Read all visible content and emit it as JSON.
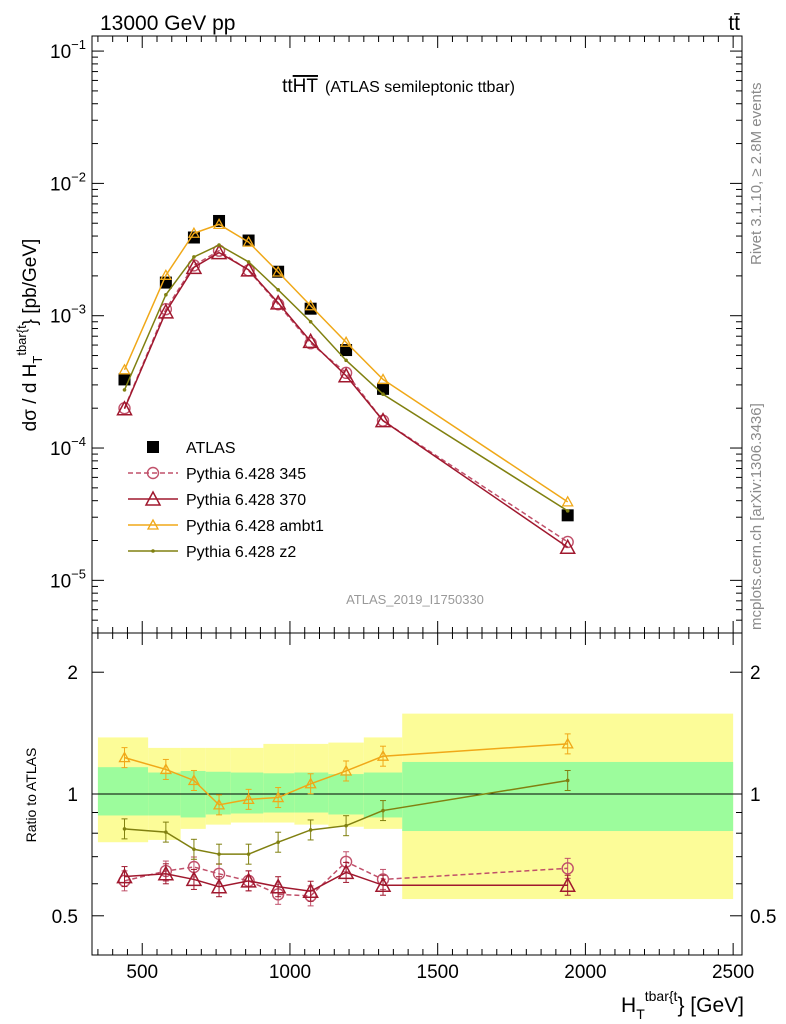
{
  "header": {
    "left": "13000 GeV pp",
    "right": "tt̄"
  },
  "annotation": {
    "process_main": "tt",
    "process_over": "HT",
    "process_suffix": "(ATLAS semileptonic ttbar)",
    "analysis_id": "ATLAS_2019_I1750330"
  },
  "side_labels": {
    "rivet": "Rivet 3.1.10, ≥ 2.8M events",
    "mcplots": "mcplots.cern.ch [arXiv:1306.3436]"
  },
  "colors": {
    "atlas": "#000000",
    "py345": "#c0506a",
    "py370": "#a0182e",
    "ambt1": "#f0a818",
    "z2": "#808010",
    "band_green": "#9cfc9c",
    "band_yellow": "#fcfc98"
  },
  "chart_data": [
    {
      "type": "line",
      "ylabel_parts": {
        "main": "dσ / d H",
        "sub": "T",
        "sup": "tbar{t",
        "tail": "} [pb/GeV]"
      },
      "yscale": "log",
      "ylim": [
        4e-06,
        0.13
      ],
      "xlim": [
        330,
        2530
      ],
      "y_ticks": [
        {
          "value": 0.1,
          "label": "10",
          "exp": "−1"
        },
        {
          "value": 0.01,
          "label": "10",
          "exp": "−2"
        },
        {
          "value": 0.001,
          "label": "10",
          "exp": "−3"
        },
        {
          "value": 0.0001,
          "label": "10",
          "exp": "−4"
        },
        {
          "value": 1e-05,
          "label": "10",
          "exp": "−5"
        }
      ],
      "legend_position": "middle-left",
      "x": [
        440,
        580,
        675,
        760,
        860,
        960,
        1070,
        1190,
        1315,
        1940
      ],
      "series": [
        {
          "name": "ATLAS",
          "marker": "square",
          "values": [
            0.00033,
            0.00178,
            0.0039,
            0.0052,
            0.0037,
            0.00215,
            0.00113,
            0.00055,
            0.00028,
            3.1e-05
          ]
        },
        {
          "name": "Pythia 6.428 345",
          "marker": "circle",
          "dashed": true,
          "values": [
            0.0002,
            0.00112,
            0.0024,
            0.0031,
            0.0022,
            0.00122,
            0.00062,
            0.00037,
            0.000161,
            1.95e-05
          ]
        },
        {
          "name": "Pythia 6.428 370",
          "marker": "triangle-large",
          "values": [
            0.000198,
            0.00107,
            0.00232,
            0.003,
            0.00222,
            0.00125,
            0.00064,
            0.000352,
            0.000161,
            1.78e-05
          ]
        },
        {
          "name": "Pythia 6.428 ambt1",
          "marker": "triangle-small",
          "values": [
            0.00039,
            0.00202,
            0.0042,
            0.0049,
            0.0036,
            0.00214,
            0.00119,
            0.00063,
            0.00033,
            3.92e-05
          ]
        },
        {
          "name": "Pythia 6.428 z2",
          "marker": "dot",
          "values": [
            0.000275,
            0.00144,
            0.00278,
            0.00342,
            0.00255,
            0.00157,
            0.0009,
            0.00046,
            0.000255,
            3.35e-05
          ]
        }
      ]
    },
    {
      "type": "line",
      "ylabel": "Ratio to ATLAS",
      "yscale": "log",
      "ylim": [
        0.4,
        2.5
      ],
      "xlim": [
        330,
        2530
      ],
      "xlabel_parts": {
        "main": "H",
        "sub": "T",
        "sup": "tbar{t",
        "tail": "} [GeV]"
      },
      "y_ticks": [
        {
          "value": 0.5,
          "label": "0.5"
        },
        {
          "value": 1,
          "label": "1"
        },
        {
          "value": 2,
          "label": "2"
        }
      ],
      "x_ticks": [
        {
          "value": 500,
          "label": "500"
        },
        {
          "value": 1000,
          "label": "1000"
        },
        {
          "value": 1500,
          "label": "1500"
        },
        {
          "value": 2000,
          "label": "2000"
        },
        {
          "value": 2500,
          "label": "2500"
        }
      ],
      "bins": [
        [
          350,
          520
        ],
        [
          520,
          630
        ],
        [
          630,
          715
        ],
        [
          715,
          800
        ],
        [
          800,
          910
        ],
        [
          910,
          1015
        ],
        [
          1015,
          1130
        ],
        [
          1130,
          1250
        ],
        [
          1250,
          1380
        ],
        [
          1380,
          2500
        ]
      ],
      "band_green": [
        [
          0.885,
          1.165
        ],
        [
          0.885,
          1.13
        ],
        [
          0.875,
          1.14
        ],
        [
          0.89,
          1.135
        ],
        [
          0.895,
          1.13
        ],
        [
          0.9,
          1.125
        ],
        [
          0.9,
          1.13
        ],
        [
          0.89,
          1.12
        ],
        [
          0.875,
          1.13
        ],
        [
          0.81,
          1.2
        ]
      ],
      "band_yellow": [
        [
          0.76,
          1.38
        ],
        [
          0.77,
          1.3
        ],
        [
          0.82,
          1.3
        ],
        [
          0.84,
          1.3
        ],
        [
          0.85,
          1.3
        ],
        [
          0.85,
          1.33
        ],
        [
          0.84,
          1.33
        ],
        [
          0.83,
          1.34
        ],
        [
          0.82,
          1.38
        ],
        [
          0.55,
          1.58
        ]
      ],
      "x": [
        440,
        580,
        675,
        760,
        860,
        960,
        1070,
        1190,
        1315,
        1940
      ],
      "series": [
        {
          "name": "Pythia 6.428 345",
          "marker": "circle",
          "dashed": true,
          "values": [
            0.61,
            0.645,
            0.66,
            0.635,
            0.61,
            0.565,
            0.56,
            0.68,
            0.615,
            0.655
          ]
        },
        {
          "name": "Pythia 6.428 370",
          "marker": "triangle-large",
          "values": [
            0.625,
            0.635,
            0.615,
            0.59,
            0.61,
            0.59,
            0.575,
            0.64,
            0.595,
            0.595
          ]
        },
        {
          "name": "Pythia 6.428 ambt1",
          "marker": "triangle-small",
          "values": [
            1.23,
            1.15,
            1.08,
            0.94,
            0.97,
            0.98,
            1.06,
            1.14,
            1.24,
            1.33
          ]
        },
        {
          "name": "Pythia 6.428 z2",
          "marker": "dot",
          "values": [
            0.82,
            0.805,
            0.73,
            0.71,
            0.71,
            0.76,
            0.815,
            0.835,
            0.91,
            1.08
          ]
        }
      ]
    }
  ]
}
